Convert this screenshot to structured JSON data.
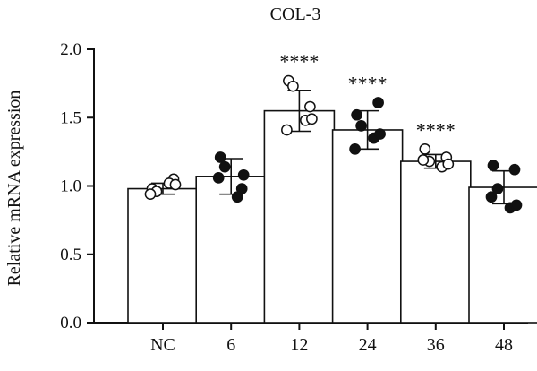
{
  "chart_data": {
    "type": "bar",
    "title": "COL-3",
    "xlabel": "",
    "ylabel": "Relative mRNA expression",
    "ylim": [
      0,
      2.0
    ],
    "yticks": [
      0.0,
      0.5,
      1.0,
      1.5,
      2.0
    ],
    "ytick_labels": [
      "0.0",
      "0.5",
      "1.0",
      "1.5",
      "2.0"
    ],
    "categories": [
      "NC",
      "6",
      "12",
      "24",
      "36",
      "48"
    ],
    "values": [
      0.98,
      1.07,
      1.55,
      1.41,
      1.18,
      0.99
    ],
    "error": [
      0.04,
      0.13,
      0.15,
      0.14,
      0.05,
      0.12
    ],
    "significance": [
      "",
      "",
      "****",
      "****",
      "****",
      ""
    ],
    "marker_fill": [
      "open",
      "filled",
      "open",
      "filled",
      "open",
      "filled"
    ],
    "points": [
      [
        0.98,
        1.05,
        0.96,
        1.02,
        0.94,
        1.01
      ],
      [
        1.21,
        0.98,
        1.14,
        0.92,
        1.06,
        1.08
      ],
      [
        1.77,
        1.58,
        1.73,
        1.48,
        1.41,
        1.49
      ],
      [
        1.52,
        1.61,
        1.44,
        1.35,
        1.27,
        1.38
      ],
      [
        1.27,
        1.21,
        1.18,
        1.14,
        1.19,
        1.16
      ],
      [
        1.15,
        1.12,
        0.98,
        0.84,
        0.92,
        0.86
      ]
    ],
    "colors": {
      "bar_fill": "#ffffff",
      "stroke": "#111111",
      "marker_filled": "#111111",
      "marker_open": "#ffffff"
    }
  }
}
